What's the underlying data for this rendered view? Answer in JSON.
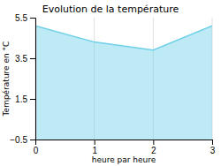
{
  "chart_data": {
    "type": "area",
    "title": "Evolution de la température",
    "x_label": "heure par heure",
    "y_label": "Température en °C",
    "x": [
      0,
      1,
      2,
      3
    ],
    "values": [
      5.1,
      4.3,
      3.9,
      5.1
    ],
    "xlim": [
      0,
      3
    ],
    "ylim": [
      -0.5,
      5.5
    ],
    "xticks": [
      0,
      1,
      2,
      3
    ],
    "yticks": [
      {
        "value": -0.5,
        "label": "−0.5"
      },
      1.5,
      3.5,
      5.5
    ],
    "color": "#6dd0e8",
    "grid": "x"
  }
}
